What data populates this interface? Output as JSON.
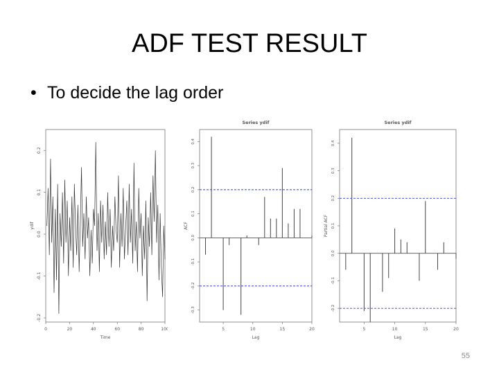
{
  "slide": {
    "title": "ADF TEST RESULT",
    "bullet": "To decide the lag order",
    "bullet_marker": "•",
    "page_number": "55"
  },
  "chart_data": [
    {
      "type": "line",
      "title": "",
      "xlabel": "Time",
      "ylabel": "ydif",
      "xlim": [
        0,
        100
      ],
      "ylim": [
        -0.21,
        0.25
      ],
      "xticks": [
        0,
        20,
        40,
        60,
        80,
        100
      ],
      "yticks": [
        -0.2,
        -0.1,
        0.0,
        0.1,
        0.2
      ],
      "ytick_labels": [
        "-0.2",
        "-0.1",
        "0.0",
        "0.1",
        "0.2"
      ],
      "xtick_labels": [
        "0",
        "20",
        "40",
        "60",
        "80",
        "100"
      ],
      "x": [
        1,
        2,
        3,
        4,
        5,
        6,
        7,
        8,
        9,
        10,
        11,
        12,
        13,
        14,
        15,
        16,
        17,
        18,
        19,
        20,
        21,
        22,
        23,
        24,
        25,
        26,
        27,
        28,
        29,
        30,
        31,
        32,
        33,
        34,
        35,
        36,
        37,
        38,
        39,
        40,
        41,
        42,
        43,
        44,
        45,
        46,
        47,
        48,
        49,
        50,
        51,
        52,
        53,
        54,
        55,
        56,
        57,
        58,
        59,
        60,
        61,
        62,
        63,
        64,
        65,
        66,
        67,
        68,
        69,
        70,
        71,
        72,
        73,
        74,
        75,
        76,
        77,
        78,
        79,
        80,
        81,
        82,
        83,
        84,
        85,
        86,
        87,
        88,
        89,
        90,
        91,
        92,
        93,
        94,
        95,
        96,
        97,
        98,
        99,
        100
      ],
      "values": [
        0.02,
        0.11,
        -0.05,
        0.18,
        -0.02,
        0.09,
        -0.14,
        0.06,
        -0.11,
        0.12,
        -0.19,
        0.05,
        -0.03,
        0.1,
        -0.07,
        0.13,
        -0.02,
        0.08,
        -0.1,
        0.04,
        -0.04,
        0.09,
        -0.08,
        0.12,
        0.02,
        -0.05,
        0.07,
        -0.09,
        0.03,
        0.16,
        -0.03,
        0.05,
        -0.06,
        0.09,
        -0.01,
        0.04,
        -0.1,
        0.01,
        -0.07,
        0.06,
        0.02,
        0.22,
        -0.04,
        0.05,
        -0.09,
        0.08,
        -0.02,
        0.07,
        -0.06,
        0.03,
        -0.05,
        0.1,
        -0.03,
        0.06,
        -0.08,
        0.02,
        -0.04,
        0.09,
        0.01,
        -0.02,
        0.14,
        -0.08,
        0.05,
        -0.03,
        0.11,
        -0.06,
        0.01,
        0.08,
        -0.05,
        0.12,
        -0.02,
        0.06,
        -0.07,
        0.17,
        -0.04,
        0.03,
        -0.09,
        0.11,
        -0.01,
        0.05,
        -0.1,
        0.02,
        -0.06,
        0.08,
        -0.16,
        0.04,
        -0.03,
        0.1,
        -0.05,
        0.14,
        0.03,
        0.2,
        -0.02,
        0.07,
        -0.11,
        0.05,
        -0.08,
        -0.15,
        0.02,
        -0.06
      ],
      "grid": false
    },
    {
      "type": "bar",
      "title": "Series ydif",
      "xlabel": "Lag",
      "ylabel": "ACF",
      "xlim": [
        1,
        20
      ],
      "ylim": [
        -0.35,
        0.45
      ],
      "xticks": [
        5,
        10,
        15,
        20
      ],
      "xtick_labels": [
        "5",
        "10",
        "15",
        "20"
      ],
      "yticks": [
        -0.3,
        -0.2,
        -0.1,
        0.0,
        0.1,
        0.2,
        0.3,
        0.4
      ],
      "ytick_labels": [
        "-0.3",
        "-0.2",
        "-0.1",
        "0.0",
        "0.1",
        "0.2",
        "0.3",
        "0.4"
      ],
      "lags": [
        2,
        3,
        4,
        5,
        6,
        7,
        8,
        9,
        10,
        11,
        12,
        13,
        14,
        15,
        16,
        17,
        18,
        19,
        20,
        21
      ],
      "values": [
        -0.07,
        0.42,
        0.0,
        -0.3,
        -0.03,
        0.0,
        -0.32,
        0.01,
        0.0,
        -0.03,
        0.17,
        0.08,
        0.08,
        0.29,
        0.06,
        0.12,
        0.12,
        0.0,
        0.01,
        -0.02
      ],
      "confidence_band": [
        -0.2,
        0.2
      ],
      "grid": false
    },
    {
      "type": "bar",
      "title": "Series ydif",
      "xlabel": "Lag",
      "ylabel": "Partial ACF",
      "xlim": [
        1,
        20
      ],
      "ylim": [
        -0.25,
        0.45
      ],
      "xticks": [
        5,
        10,
        15,
        20
      ],
      "xtick_labels": [
        "5",
        "10",
        "15",
        "20"
      ],
      "yticks": [
        -0.2,
        -0.1,
        0.0,
        0.1,
        0.2,
        0.3,
        0.4
      ],
      "ytick_labels": [
        "-0.2",
        "-0.1",
        "0.0",
        "0.1",
        "0.2",
        "0.3",
        "0.4"
      ],
      "lags": [
        2,
        3,
        4,
        5,
        6,
        7,
        8,
        9,
        10,
        11,
        12,
        13,
        14,
        15,
        16,
        17,
        18,
        19,
        20,
        21
      ],
      "values": [
        -0.06,
        0.42,
        0.0,
        -0.21,
        -0.25,
        0.0,
        -0.14,
        -0.09,
        0.09,
        0.05,
        0.04,
        0.0,
        -0.1,
        0.19,
        0.0,
        -0.06,
        0.04,
        0.0,
        -0.02,
        0.02
      ],
      "confidence_band": [
        -0.2,
        0.2
      ],
      "grid": false
    }
  ]
}
